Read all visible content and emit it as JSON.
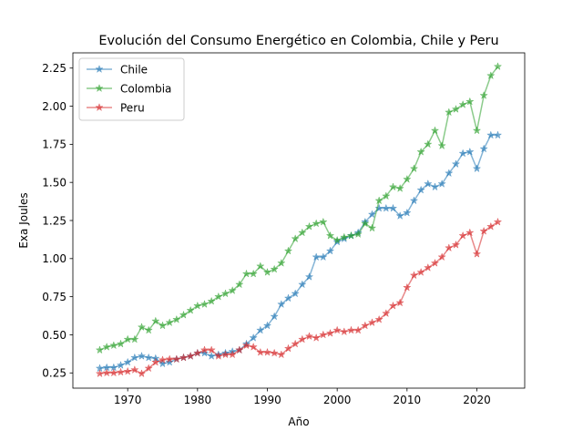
{
  "chart_data": {
    "type": "line",
    "title": "Evolución del Consumo Energético en Colombia, Chile y Peru",
    "xlabel": "Año",
    "ylabel": "Exa Joules",
    "xlim": [
      1962.15,
      2026.85
    ],
    "ylim": [
      0.15,
      2.35
    ],
    "xticks": [
      1970,
      1980,
      1990,
      2000,
      2010,
      2020
    ],
    "yticks": [
      0.25,
      0.5,
      0.75,
      1.0,
      1.25,
      1.5,
      1.75,
      2.0,
      2.25
    ],
    "grid": false,
    "legend_position": "top-left",
    "marker": "star",
    "x": [
      1966,
      1967,
      1968,
      1969,
      1970,
      1971,
      1972,
      1973,
      1974,
      1975,
      1976,
      1977,
      1978,
      1979,
      1980,
      1981,
      1982,
      1983,
      1984,
      1985,
      1986,
      1987,
      1988,
      1989,
      1990,
      1991,
      1992,
      1993,
      1994,
      1995,
      1996,
      1997,
      1998,
      1999,
      2000,
      2001,
      2002,
      2003,
      2004,
      2005,
      2006,
      2007,
      2008,
      2009,
      2010,
      2011,
      2012,
      2013,
      2014,
      2015,
      2016,
      2017,
      2018,
      2019,
      2020,
      2021,
      2022,
      2023
    ],
    "series": [
      {
        "name": "Chile",
        "color": "#1f77b4",
        "values": [
          0.28,
          0.285,
          0.285,
          0.3,
          0.32,
          0.35,
          0.36,
          0.35,
          0.345,
          0.31,
          0.32,
          0.34,
          0.35,
          0.36,
          0.38,
          0.38,
          0.36,
          0.37,
          0.38,
          0.39,
          0.4,
          0.44,
          0.48,
          0.53,
          0.56,
          0.62,
          0.7,
          0.74,
          0.77,
          0.83,
          0.88,
          1.01,
          1.01,
          1.05,
          1.11,
          1.13,
          1.15,
          1.17,
          1.24,
          1.29,
          1.33,
          1.33,
          1.33,
          1.28,
          1.3,
          1.38,
          1.45,
          1.49,
          1.47,
          1.49,
          1.56,
          1.62,
          1.69,
          1.7,
          1.59,
          1.72,
          1.81,
          1.81
        ]
      },
      {
        "name": "Colombia",
        "color": "#2ca02c",
        "values": [
          0.4,
          0.42,
          0.43,
          0.44,
          0.47,
          0.47,
          0.55,
          0.53,
          0.59,
          0.56,
          0.58,
          0.6,
          0.63,
          0.66,
          0.69,
          0.7,
          0.72,
          0.75,
          0.77,
          0.79,
          0.83,
          0.9,
          0.9,
          0.95,
          0.91,
          0.93,
          0.97,
          1.05,
          1.13,
          1.17,
          1.21,
          1.23,
          1.24,
          1.15,
          1.12,
          1.14,
          1.15,
          1.16,
          1.23,
          1.2,
          1.38,
          1.41,
          1.47,
          1.46,
          1.52,
          1.59,
          1.7,
          1.75,
          1.84,
          1.74,
          1.96,
          1.98,
          2.01,
          2.03,
          1.84,
          2.07,
          2.2,
          2.26
        ]
      },
      {
        "name": "Peru",
        "color": "#d62728",
        "values": [
          0.245,
          0.25,
          0.25,
          0.255,
          0.26,
          0.27,
          0.245,
          0.28,
          0.32,
          0.335,
          0.34,
          0.34,
          0.35,
          0.36,
          0.38,
          0.4,
          0.4,
          0.36,
          0.37,
          0.37,
          0.4,
          0.43,
          0.42,
          0.385,
          0.385,
          0.38,
          0.37,
          0.41,
          0.44,
          0.47,
          0.49,
          0.48,
          0.5,
          0.51,
          0.53,
          0.52,
          0.53,
          0.53,
          0.56,
          0.58,
          0.6,
          0.64,
          0.69,
          0.71,
          0.81,
          0.89,
          0.91,
          0.94,
          0.97,
          1.01,
          1.07,
          1.09,
          1.15,
          1.17,
          1.03,
          1.18,
          1.21,
          1.24
        ]
      }
    ]
  }
}
